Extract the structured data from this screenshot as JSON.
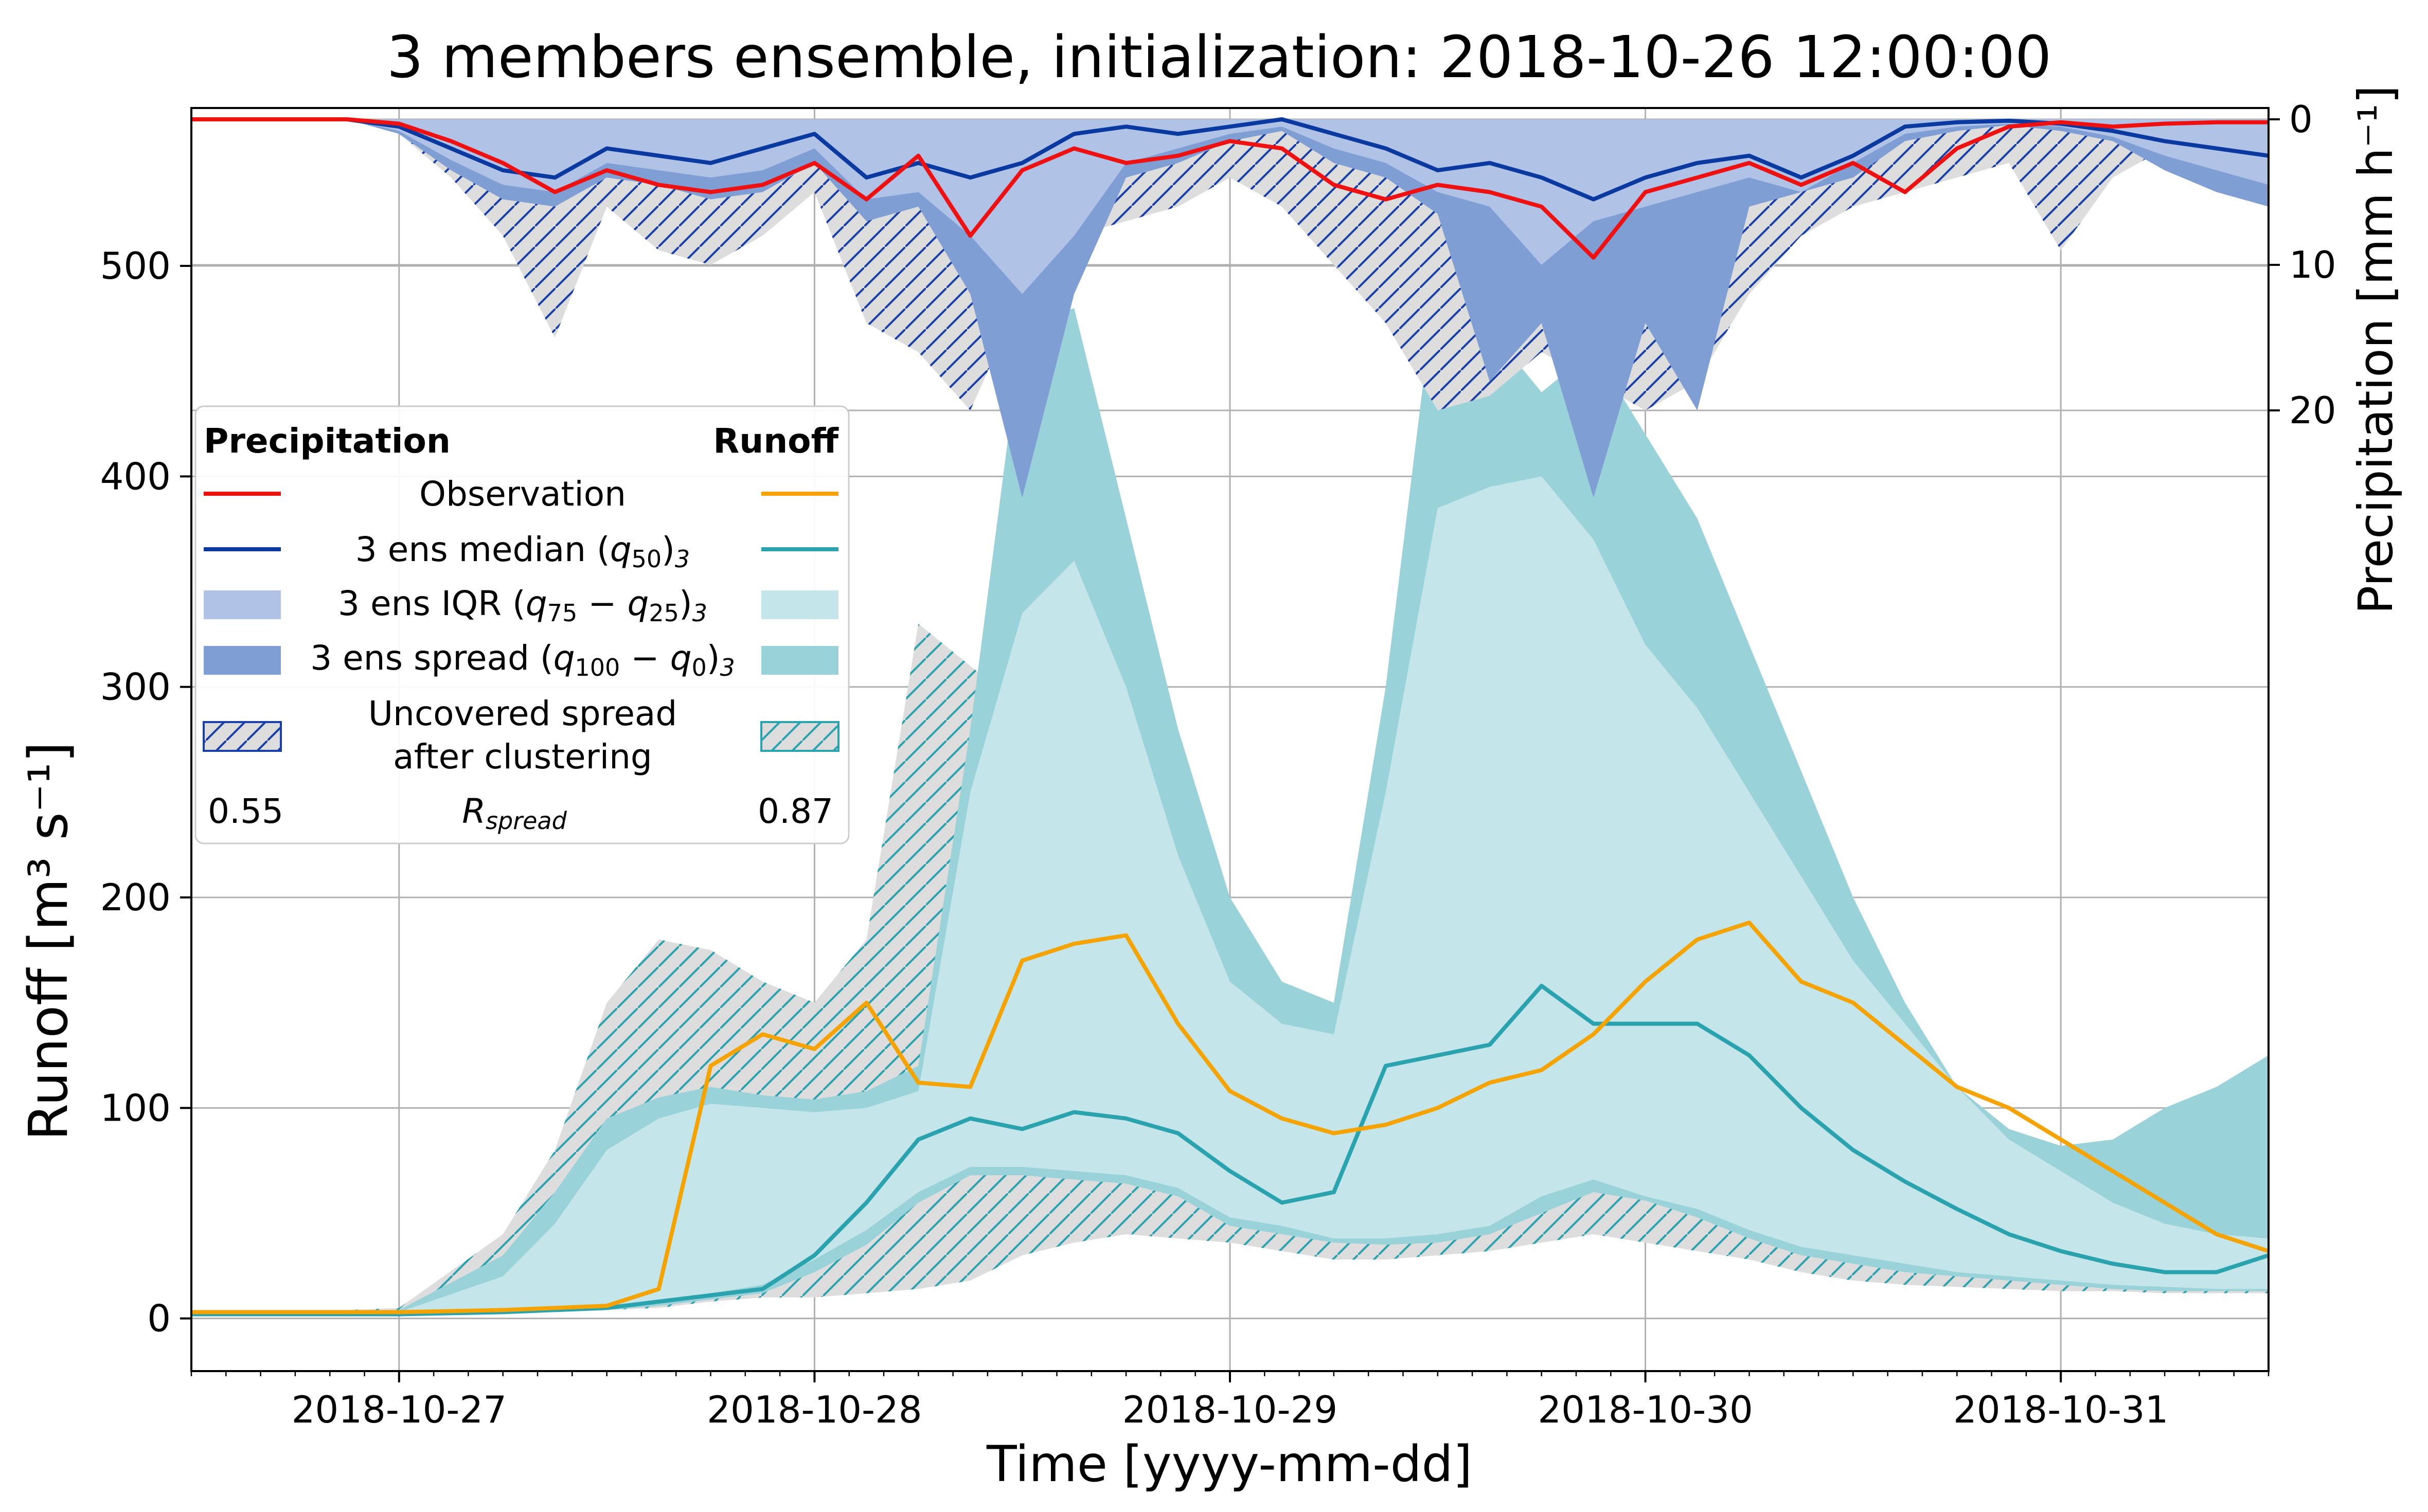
{
  "chart_data": {
    "type": "line",
    "title": "3 members ensemble, initialization: 2018-10-26 12:00:00",
    "xlabel": "Time [yyyy-mm-dd]",
    "ylabel": "Runoff [m³ s⁻¹]",
    "ylabel_right": "Precipitation [mm h⁻¹]",
    "xlim": [
      "2018-10-26 12:00",
      "2018-10-31 12:00"
    ],
    "ylim": [
      -25,
      575
    ],
    "precip_ylim": [
      0,
      25.5
    ],
    "x_ticks": [
      "2018-10-27",
      "2018-10-28",
      "2018-10-29",
      "2018-10-30",
      "2018-10-31"
    ],
    "y_ticks": [
      0,
      100,
      200,
      300,
      400,
      500
    ],
    "precip_ticks": [
      0,
      10,
      20
    ],
    "grid": true,
    "colors": {
      "precip_obs": "#ee1111",
      "precip_median": "#0a3aa0",
      "precip_iqr": "#b0c2e6",
      "precip_spread": "#7f9ed4",
      "precip_hatch": "#1a40a8",
      "runoff_obs": "#f5a300",
      "runoff_median": "#2ba3ae",
      "runoff_iqr": "#c4e6ea",
      "runoff_spread": "#99d2d8",
      "runoff_hatch": "#2ba3ae",
      "uncovered_fill": "#dddddd"
    },
    "legend": {
      "placement": "upper-left",
      "header_left": "Precipitation",
      "header_right": "Runoff",
      "entries": [
        "Observation",
        "3 ens median (q50)3",
        "3 ens IQR (q75 − q25)3",
        "3 ens spread (q100 − q0)3",
        "Uncovered spread after clustering"
      ],
      "r_label": "Rspread",
      "r_precip": "0.55",
      "r_runoff": "0.87"
    },
    "runoff_x_hours": [
      0,
      6,
      12,
      18,
      21,
      24,
      27,
      30,
      33,
      36,
      39,
      42,
      45,
      48,
      51,
      54,
      57,
      60,
      63,
      66,
      69,
      72,
      75,
      78,
      81,
      84,
      87,
      90,
      93,
      96,
      99,
      102,
      105,
      108,
      111,
      114,
      117,
      120
    ],
    "runoff_series": [
      {
        "name": "observation",
        "values": [
          3,
          3,
          3,
          4,
          5,
          6,
          14,
          120,
          135,
          128,
          150,
          112,
          110,
          170,
          178,
          182,
          140,
          108,
          95,
          88,
          92,
          100,
          112,
          118,
          135,
          160,
          180,
          188,
          160,
          150,
          130,
          110,
          100,
          85,
          70,
          55,
          40,
          32
        ]
      },
      {
        "name": "ensemble median",
        "values": [
          2,
          2,
          2,
          3,
          4,
          5,
          8,
          11,
          14,
          30,
          55,
          85,
          95,
          90,
          98,
          95,
          88,
          70,
          55,
          60,
          120,
          125,
          130,
          158,
          140,
          140,
          140,
          125,
          100,
          80,
          65,
          52,
          40,
          32,
          26,
          22,
          22,
          30
        ]
      },
      {
        "name": "IQR low",
        "values": [
          2,
          2,
          2,
          3,
          4,
          6,
          8,
          12,
          16,
          28,
          42,
          60,
          72,
          72,
          70,
          68,
          62,
          48,
          44,
          38,
          38,
          40,
          44,
          58,
          66,
          58,
          52,
          42,
          34,
          30,
          26,
          22,
          20,
          18,
          16,
          15,
          14,
          14
        ]
      },
      {
        "name": "IQR high",
        "values": [
          2,
          2,
          3,
          20,
          45,
          80,
          95,
          102,
          100,
          98,
          100,
          108,
          250,
          335,
          360,
          300,
          220,
          160,
          140,
          135,
          250,
          385,
          395,
          400,
          370,
          320,
          290,
          250,
          210,
          170,
          140,
          110,
          85,
          70,
          55,
          45,
          40,
          38
        ]
      },
      {
        "name": "spread low",
        "values": [
          2,
          2,
          2,
          3,
          3,
          4,
          6,
          9,
          12,
          22,
          35,
          55,
          68,
          68,
          66,
          64,
          58,
          44,
          40,
          36,
          35,
          36,
          40,
          50,
          60,
          56,
          48,
          38,
          30,
          26,
          22,
          20,
          18,
          16,
          14,
          13,
          13,
          13
        ]
      },
      {
        "name": "spread high",
        "values": [
          3,
          3,
          4,
          30,
          60,
          95,
          105,
          110,
          106,
          104,
          108,
          120,
          280,
          470,
          480,
          380,
          280,
          200,
          160,
          150,
          300,
          500,
          470,
          440,
          460,
          420,
          380,
          320,
          260,
          200,
          150,
          110,
          90,
          82,
          85,
          100,
          110,
          125
        ]
      },
      {
        "name": "uncovered high",
        "values": [
          3,
          3,
          5,
          40,
          80,
          150,
          180,
          175,
          160,
          150,
          180,
          330,
          310,
          290,
          300,
          270,
          230,
          180,
          150,
          140,
          150,
          160,
          150,
          130,
          100,
          70,
          50,
          40,
          32,
          28,
          24,
          22,
          20,
          18,
          16,
          15,
          14,
          14
        ]
      },
      {
        "name": "uncovered low",
        "values": [
          2,
          2,
          2,
          3,
          3,
          4,
          5,
          8,
          10,
          10,
          12,
          14,
          18,
          30,
          36,
          40,
          38,
          36,
          32,
          28,
          28,
          30,
          32,
          36,
          40,
          36,
          32,
          28,
          22,
          18,
          16,
          15,
          14,
          13,
          13,
          12,
          12,
          12
        ]
      }
    ],
    "precip_x_hours": [
      0,
      3,
      6,
      9,
      12,
      15,
      18,
      21,
      24,
      27,
      30,
      33,
      36,
      39,
      42,
      45,
      48,
      51,
      54,
      57,
      60,
      63,
      66,
      69,
      72,
      75,
      78,
      81,
      84,
      87,
      90,
      93,
      96,
      99,
      102,
      105,
      108,
      111,
      114,
      117,
      120
    ],
    "precip_series": [
      {
        "name": "observation",
        "values": [
          0,
          0,
          0,
          0,
          0.3,
          1.5,
          3.0,
          5.0,
          3.5,
          4.5,
          5.0,
          4.5,
          3.0,
          5.5,
          2.5,
          8.0,
          3.5,
          2.0,
          3.0,
          2.5,
          1.5,
          2.0,
          4.5,
          5.5,
          4.5,
          5.0,
          6.0,
          9.5,
          5.0,
          4.0,
          3.0,
          4.5,
          3.0,
          5.0,
          2.0,
          0.5,
          0.2,
          0.5,
          0.3,
          0.2,
          0.2
        ]
      },
      {
        "name": "ensemble median",
        "values": [
          0,
          0,
          0,
          0,
          0.5,
          2.0,
          3.5,
          4.0,
          2.0,
          2.5,
          3.0,
          2.0,
          1.0,
          4.0,
          3.0,
          4.0,
          3.0,
          1.0,
          0.5,
          1.0,
          0.5,
          0.0,
          1.0,
          2.0,
          3.5,
          3.0,
          4.0,
          5.5,
          4.0,
          3.0,
          2.5,
          4.0,
          2.5,
          0.5,
          0.2,
          0.1,
          0.3,
          0.8,
          1.5,
          2.0,
          2.5
        ]
      },
      {
        "name": "IQR",
        "values": [
          0,
          0,
          0,
          0,
          0.8,
          2.8,
          4.5,
          5.0,
          3.0,
          3.5,
          4.0,
          3.5,
          2.0,
          5.5,
          5.0,
          8.0,
          12.0,
          8.0,
          3.0,
          2.0,
          1.0,
          0.5,
          2.0,
          3.0,
          5.0,
          6.0,
          10.0,
          7.0,
          6.0,
          5.0,
          4.0,
          5.0,
          3.0,
          1.0,
          0.5,
          0.3,
          0.5,
          1.2,
          2.5,
          3.5,
          4.5
        ]
      },
      {
        "name": "spread",
        "values": [
          0,
          0,
          0,
          0,
          1.0,
          3.5,
          5.5,
          6.0,
          4.0,
          4.5,
          5.5,
          5.0,
          3.0,
          7.0,
          6.0,
          12.0,
          26.0,
          12.0,
          4.0,
          3.0,
          1.5,
          0.8,
          3.0,
          4.0,
          6.5,
          18.0,
          14.0,
          26.0,
          14.0,
          20.0,
          6.0,
          5.0,
          4.0,
          1.5,
          0.8,
          0.4,
          0.8,
          1.5,
          3.5,
          5.0,
          6.0
        ]
      },
      {
        "name": "uncovered",
        "values": [
          0,
          0,
          0,
          0,
          1.0,
          4.0,
          8.0,
          15.0,
          6.0,
          9.0,
          10.0,
          8.0,
          5.0,
          14.0,
          16.0,
          20.0,
          12.0,
          8.0,
          7.0,
          6.0,
          4.0,
          6.0,
          10.0,
          14.0,
          20.0,
          19.0,
          16.0,
          18.0,
          20.0,
          18.0,
          12.0,
          8.0,
          6.0,
          5.0,
          4.0,
          3.0,
          9.0,
          4.0,
          2.0,
          1.0,
          0.5
        ]
      }
    ]
  }
}
